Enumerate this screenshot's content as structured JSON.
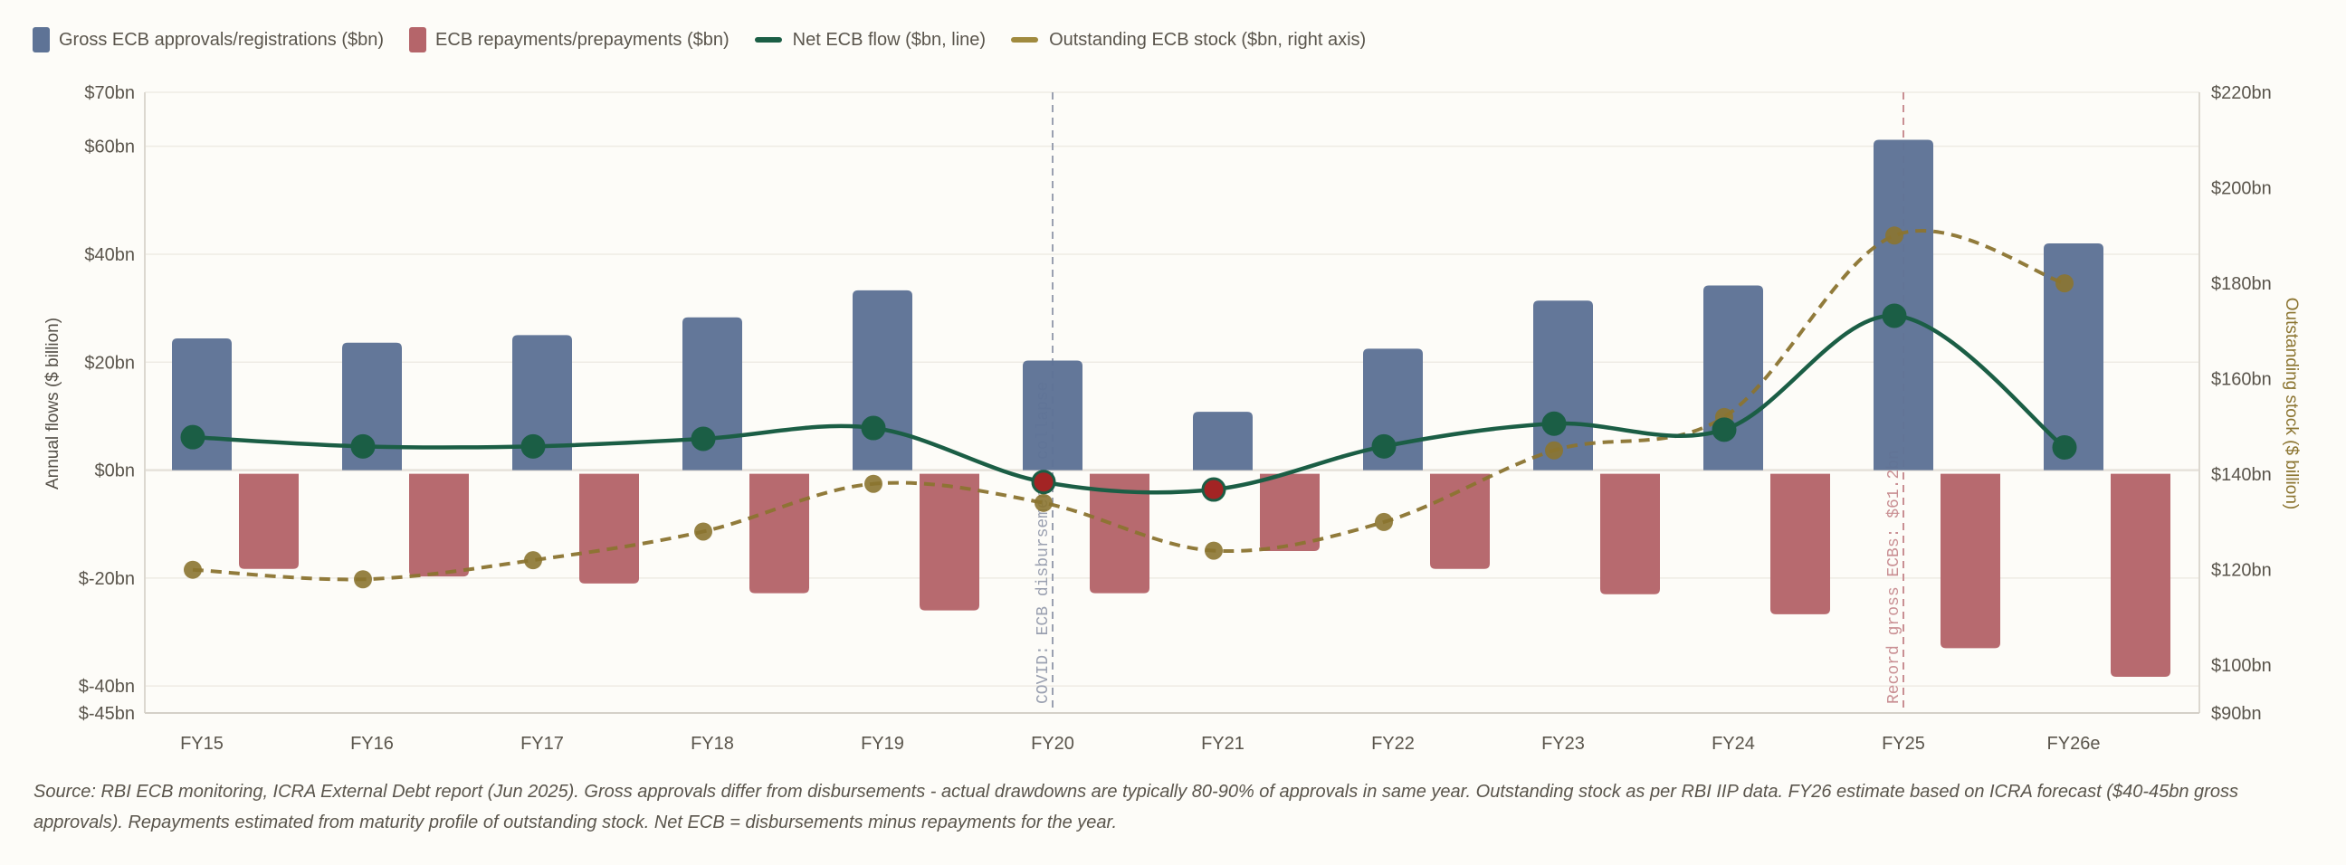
{
  "legend": [
    {
      "label": "Gross ECB approvals/registrations ($bn)",
      "color": "#5e7396",
      "kind": "box"
    },
    {
      "label": "ECB repayments/prepayments ($bn)",
      "color": "#b5656a",
      "kind": "box"
    },
    {
      "label": "Net ECB flow ($bn, line)",
      "color": "#1b5e45",
      "kind": "line"
    },
    {
      "label": "Outstanding ECB stock ($bn, right axis)",
      "color": "#a08a3e",
      "kind": "line"
    }
  ],
  "chart_data": {
    "type": "bar",
    "categories": [
      "FY15",
      "FY16",
      "FY17",
      "FY18",
      "FY19",
      "FY20",
      "FY21",
      "FY22",
      "FY23",
      "FY24",
      "FY25",
      "FY26e"
    ],
    "series": [
      {
        "name": "Gross ECB approvals/registrations ($bn)",
        "type": "bar",
        "axis": "left",
        "color": "#5e7396",
        "values": [
          24.4,
          23.6,
          25.0,
          28.3,
          33.3,
          20.3,
          10.8,
          22.5,
          31.4,
          34.2,
          61.2,
          42.0
        ]
      },
      {
        "name": "ECB repayments/prepayments ($bn)",
        "type": "bar",
        "axis": "left",
        "color": "#b5656a",
        "values": [
          -18.3,
          -19.7,
          -21.0,
          -22.8,
          -26.0,
          -22.8,
          -15.0,
          -18.3,
          -23.0,
          -26.7,
          -33.0,
          -38.3
        ]
      },
      {
        "name": "Net ECB flow ($bn, line)",
        "type": "line",
        "axis": "left",
        "color": "#1b5e45",
        "negative_color": "#a32424",
        "values": [
          6.1,
          4.4,
          4.4,
          5.8,
          7.8,
          -2.2,
          -3.6,
          4.4,
          8.6,
          7.5,
          28.6,
          4.2
        ]
      },
      {
        "name": "Outstanding ECB stock ($bn, right axis)",
        "type": "line",
        "axis": "right",
        "dashed": true,
        "color": "#8b7430",
        "values": [
          120,
          118,
          122,
          128,
          138,
          134,
          124,
          130,
          145,
          152,
          190,
          180
        ]
      }
    ],
    "ylabel": "Annual flows ($ billion)",
    "ylabel_right": "Outstanding stock ($ billion)",
    "ylim": [
      -45,
      70
    ],
    "ylim_right": [
      90,
      220
    ],
    "yticks": [
      {
        "value": 70,
        "label": "$70bn"
      },
      {
        "value": 60,
        "label": "$60bn"
      },
      {
        "value": 40,
        "label": "$40bn"
      },
      {
        "value": 20,
        "label": "$20bn"
      },
      {
        "value": 0,
        "label": "$0bn"
      },
      {
        "value": -20,
        "label": "$-20bn"
      },
      {
        "value": -40,
        "label": "$-40bn"
      },
      {
        "value": -45,
        "label": "$-45bn"
      }
    ],
    "yticks_right": [
      {
        "value": 220,
        "label": "$220bn"
      },
      {
        "value": 200,
        "label": "$200bn"
      },
      {
        "value": 180,
        "label": "$180bn"
      },
      {
        "value": 160,
        "label": "$160bn"
      },
      {
        "value": 140,
        "label": "$140bn"
      },
      {
        "value": 120,
        "label": "$120bn"
      },
      {
        "value": 100,
        "label": "$100bn"
      },
      {
        "value": 90,
        "label": "$90bn"
      }
    ],
    "grid": true,
    "legend_position": "top-left",
    "annotations": [
      {
        "category": "FY20",
        "text": "COVID: ECB disbursements collapse",
        "color": "#9aa0b0"
      },
      {
        "category": "FY25",
        "text": "Record gross ECBs: $61.2bn",
        "color": "#c98f93"
      }
    ]
  },
  "source": "Source: RBI ECB monitoring, ICRA External Debt report (Jun 2025). Gross approvals differ from disbursements - actual drawdowns are typically 80-90% of approvals in same year. Outstanding stock as per RBI IIP data. FY26 estimate based on ICRA forecast ($40-45bn gross approvals). Repayments estimated from maturity profile of outstanding stock. Net ECB = disbursements minus repayments for the year."
}
